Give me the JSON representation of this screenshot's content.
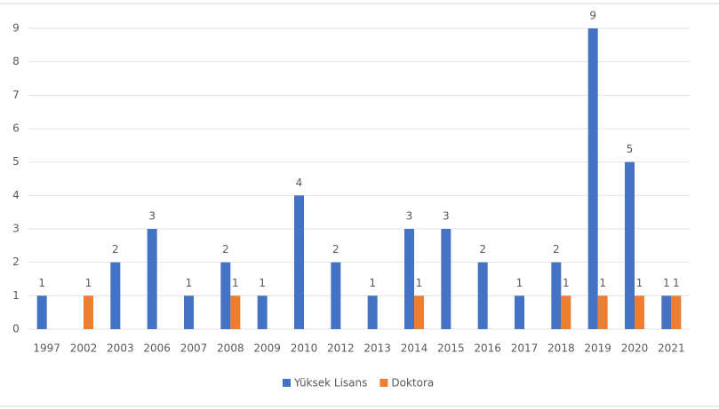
{
  "chart_data": {
    "type": "bar",
    "categories": [
      "1997",
      "2002",
      "2003",
      "2006",
      "2007",
      "2008",
      "2009",
      "2010",
      "2012",
      "2013",
      "2014",
      "2015",
      "2016",
      "2017",
      "2018",
      "2019",
      "2020",
      "2021"
    ],
    "series": [
      {
        "name": "Yüksek Lisans",
        "color": "#4472c4",
        "values": [
          1,
          null,
          2,
          3,
          1,
          2,
          1,
          4,
          2,
          1,
          3,
          3,
          2,
          1,
          2,
          9,
          5,
          1
        ]
      },
      {
        "name": "Doktora",
        "color": "#ed7d31",
        "values": [
          null,
          1,
          null,
          null,
          null,
          1,
          null,
          null,
          null,
          null,
          1,
          null,
          null,
          null,
          1,
          1,
          1,
          1
        ]
      }
    ],
    "ylim": [
      0,
      9
    ],
    "yticks": [
      0,
      1,
      2,
      3,
      4,
      5,
      6,
      7,
      8,
      9
    ],
    "grid": true,
    "legend": "bottom"
  }
}
